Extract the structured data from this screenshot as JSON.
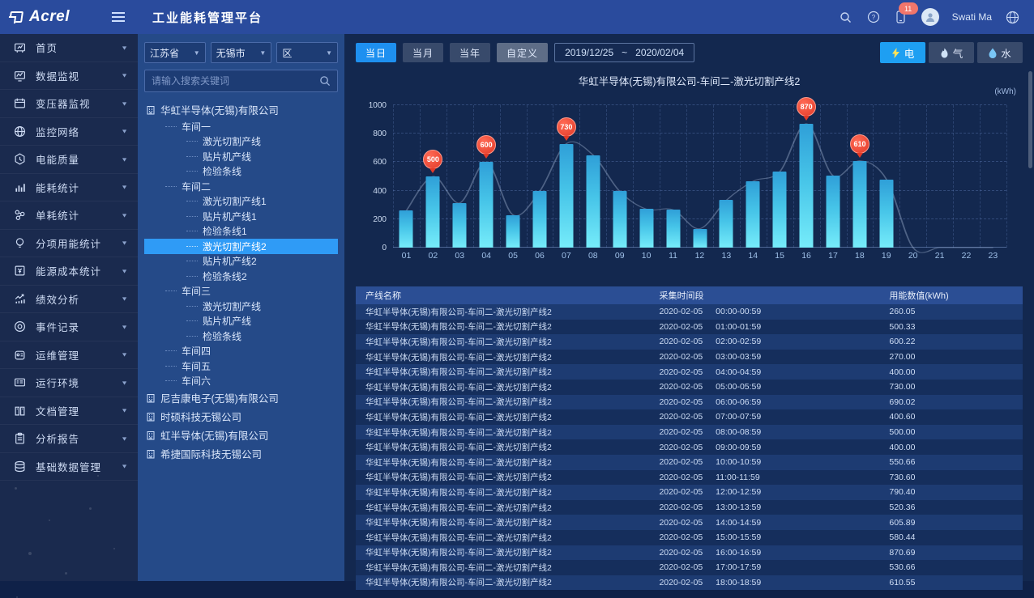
{
  "header": {
    "logo_text": "Acrel",
    "title": "工业能耗管理平台",
    "user_name": "Swati Ma",
    "notification_count": "11"
  },
  "sidebar": {
    "items": [
      {
        "label": "首页",
        "icon": "home-icon"
      },
      {
        "label": "数据监视",
        "icon": "data-monitor-icon"
      },
      {
        "label": "变压器监视",
        "icon": "transformer-icon"
      },
      {
        "label": "监控网络",
        "icon": "network-icon"
      },
      {
        "label": "电能质量",
        "icon": "power-quality-icon"
      },
      {
        "label": "能耗统计",
        "icon": "energy-stats-icon"
      },
      {
        "label": "单耗统计",
        "icon": "unit-consumption-icon"
      },
      {
        "label": "分项用能统计",
        "icon": "subitem-energy-icon"
      },
      {
        "label": "能源成本统计",
        "icon": "energy-cost-icon"
      },
      {
        "label": "绩效分析",
        "icon": "performance-icon"
      },
      {
        "label": "事件记录",
        "icon": "event-record-icon"
      },
      {
        "label": "运维管理",
        "icon": "ops-management-icon"
      },
      {
        "label": "运行环境",
        "icon": "environment-icon"
      },
      {
        "label": "文档管理",
        "icon": "document-icon"
      },
      {
        "label": "分析报告",
        "icon": "report-icon"
      },
      {
        "label": "基础数据管理",
        "icon": "base-data-icon"
      }
    ]
  },
  "filters": {
    "province": "江苏省",
    "city": "无锡市",
    "district": "区",
    "search_placeholder": "请输入搜索关键词"
  },
  "tree": {
    "selected": "激光切割产线2",
    "nodes": [
      {
        "label": "华虹半导体(无锡)有限公司",
        "depth": 0,
        "type": "company"
      },
      {
        "label": "车间一",
        "depth": 1,
        "type": "workshop"
      },
      {
        "label": "激光切割产线",
        "depth": 2,
        "type": "line"
      },
      {
        "label": "贴片机产线",
        "depth": 2,
        "type": "line"
      },
      {
        "label": "检验条线",
        "depth": 2,
        "type": "line"
      },
      {
        "label": "车间二",
        "depth": 1,
        "type": "workshop"
      },
      {
        "label": "激光切割产线1",
        "depth": 2,
        "type": "line"
      },
      {
        "label": "贴片机产线1",
        "depth": 2,
        "type": "line"
      },
      {
        "label": "检验条线1",
        "depth": 2,
        "type": "line"
      },
      {
        "label": "激光切割产线2",
        "depth": 2,
        "type": "line",
        "selected": true
      },
      {
        "label": "贴片机产线2",
        "depth": 2,
        "type": "line"
      },
      {
        "label": "检验条线2",
        "depth": 2,
        "type": "line"
      },
      {
        "label": "车间三",
        "depth": 1,
        "type": "workshop"
      },
      {
        "label": "激光切割产线",
        "depth": 2,
        "type": "line"
      },
      {
        "label": "贴片机产线",
        "depth": 2,
        "type": "line"
      },
      {
        "label": "检验条线",
        "depth": 2,
        "type": "line"
      },
      {
        "label": "车间四",
        "depth": 1,
        "type": "workshop"
      },
      {
        "label": "车间五",
        "depth": 1,
        "type": "workshop"
      },
      {
        "label": "车间六",
        "depth": 1,
        "type": "workshop"
      },
      {
        "label": "尼吉康电子(无锡)有限公司",
        "depth": 0,
        "type": "company"
      },
      {
        "label": "时硕科技无锡公司",
        "depth": 0,
        "type": "company"
      },
      {
        "label": "虹半导体(无锡)有限公司",
        "depth": 0,
        "type": "company"
      },
      {
        "label": "希捷国际科技无锡公司",
        "depth": 0,
        "type": "company"
      }
    ]
  },
  "toolbar": {
    "period_buttons": [
      "当日",
      "当月",
      "当年",
      "自定义"
    ],
    "active_period": "当日",
    "date_from": "2019/12/25",
    "date_separator": "~",
    "date_to": "2020/02/04",
    "energy_buttons": [
      {
        "label": "电",
        "icon": "bolt-icon",
        "active": true
      },
      {
        "label": "气",
        "icon": "flame-icon",
        "active": false
      },
      {
        "label": "水",
        "icon": "drop-icon",
        "active": false
      }
    ]
  },
  "chart_data": {
    "type": "bar",
    "title": "华虹半导体(无锡)有限公司-车间二-激光切割产线2",
    "unit": "(kWh)",
    "xlabel": "",
    "ylabel": "kWh",
    "ylim": [
      0,
      1000
    ],
    "yticks": [
      0,
      200,
      400,
      600,
      800,
      1000
    ],
    "grid": true,
    "categories": [
      "01",
      "02",
      "03",
      "04",
      "05",
      "06",
      "07",
      "08",
      "09",
      "10",
      "11",
      "12",
      "13",
      "14",
      "15",
      "16",
      "17",
      "18",
      "19",
      "20",
      "21",
      "22",
      "23"
    ],
    "values": [
      260,
      500,
      314,
      600,
      230,
      395,
      730,
      650,
      395,
      270,
      266,
      133,
      333,
      466,
      533,
      870,
      505,
      610,
      480,
      0,
      0,
      0,
      0
    ],
    "markers": [
      {
        "index": 1,
        "value": 500
      },
      {
        "index": 3,
        "value": 600
      },
      {
        "index": 6,
        "value": 730
      },
      {
        "index": 15,
        "value": 870
      },
      {
        "index": 17,
        "value": 610
      }
    ]
  },
  "table": {
    "columns": [
      "产线名称",
      "采集时间段",
      "用能数值(kWh)"
    ],
    "line_name": "华虹半导体(无锡)有限公司-车间二-激光切割产线2",
    "date": "2020-02-05",
    "rows": [
      {
        "time": "00:00-00:59",
        "value": "260.05"
      },
      {
        "time": "01:00-01:59",
        "value": "500.33"
      },
      {
        "time": "02:00-02:59",
        "value": "600.22"
      },
      {
        "time": "03:00-03:59",
        "value": "270.00"
      },
      {
        "time": "04:00-04:59",
        "value": "400.00"
      },
      {
        "time": "05:00-05:59",
        "value": "730.00"
      },
      {
        "time": "06:00-06:59",
        "value": "690.02"
      },
      {
        "time": "07:00-07:59",
        "value": "400.60"
      },
      {
        "time": "08:00-08:59",
        "value": "500.00"
      },
      {
        "time": "09:00-09:59",
        "value": "400.00"
      },
      {
        "time": "10:00-10:59",
        "value": "550.66"
      },
      {
        "time": "11:00-11:59",
        "value": "730.60"
      },
      {
        "time": "12:00-12:59",
        "value": "790.40"
      },
      {
        "time": "13:00-13:59",
        "value": "520.36"
      },
      {
        "time": "14:00-14:59",
        "value": "605.89"
      },
      {
        "time": "15:00-15:59",
        "value": "580.44"
      },
      {
        "time": "16:00-16:59",
        "value": "870.69"
      },
      {
        "time": "17:00-17:59",
        "value": "530.66"
      },
      {
        "time": "18:00-18:59",
        "value": "610.55"
      }
    ]
  },
  "colors": {
    "header_blue": "#2a4b9d",
    "sidebar_navy": "#1a2a4e",
    "panel_blue": "#254a88",
    "content_navy": "#13284f",
    "accent_blue": "#1e90f0",
    "selected_tree": "#2f9bf6",
    "bar_top": "#2f9fd8",
    "bar_bottom": "#76ecfa",
    "marker_red": "#e23a28",
    "table_header": "#2b4e94"
  }
}
